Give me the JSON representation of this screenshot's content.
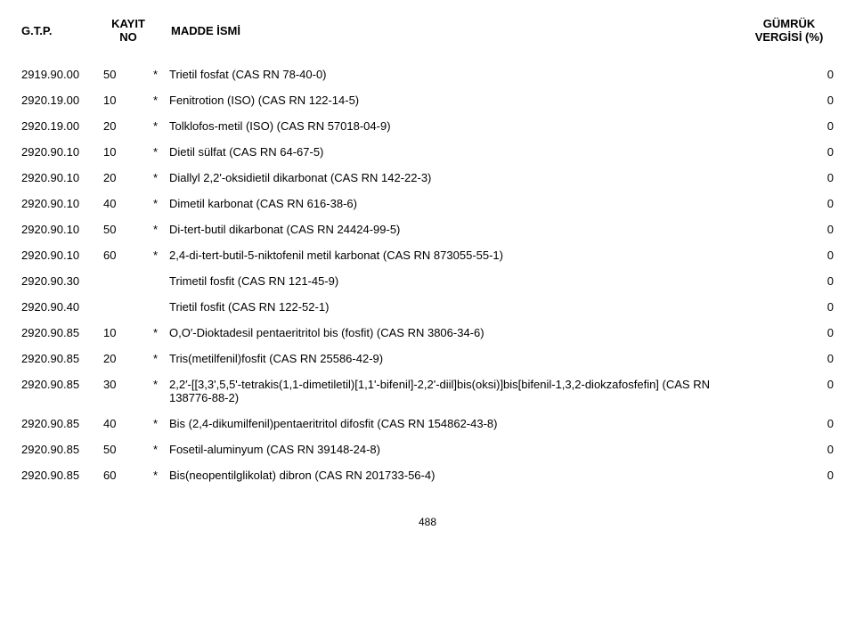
{
  "header": {
    "gtp": "G.T.P.",
    "kayit_line1": "KAYIT",
    "kayit_line2": "NO",
    "madde": "MADDE İSMİ",
    "vergi_line1": "GÜMRÜK",
    "vergi_line2": "VERGİSİ (%)"
  },
  "rows": [
    {
      "gtp": "2919.90.00",
      "kayit": "50",
      "star": "*",
      "madde": "Trietil fosfat (CAS RN 78-40-0)",
      "vergi": "0"
    },
    {
      "gtp": "2920.19.00",
      "kayit": "10",
      "star": "*",
      "madde": "Fenitrotion (ISO) (CAS RN 122-14-5)",
      "vergi": "0"
    },
    {
      "gtp": "2920.19.00",
      "kayit": "20",
      "star": "*",
      "madde": "Tolklofos-metil (ISO) (CAS RN 57018-04-9)",
      "vergi": "0"
    },
    {
      "gtp": "2920.90.10",
      "kayit": "10",
      "star": "*",
      "madde": "Dietil sülfat (CAS RN 64-67-5)",
      "vergi": "0"
    },
    {
      "gtp": "2920.90.10",
      "kayit": "20",
      "star": "*",
      "madde": "Diallyl 2,2'-oksidietil dikarbonat (CAS RN 142-22-3)",
      "vergi": "0"
    },
    {
      "gtp": "2920.90.10",
      "kayit": "40",
      "star": "*",
      "madde": "Dimetil karbonat (CAS RN 616-38-6)",
      "vergi": "0"
    },
    {
      "gtp": "2920.90.10",
      "kayit": "50",
      "star": "*",
      "madde": "Di-tert-butil dikarbonat (CAS RN 24424-99-5)",
      "vergi": "0"
    },
    {
      "gtp": "2920.90.10",
      "kayit": "60",
      "star": "*",
      "madde": "2,4-di-tert-butil-5-niktofenil metil karbonat (CAS RN 873055-55-1)",
      "vergi": "0"
    },
    {
      "gtp": "2920.90.30",
      "kayit": "",
      "star": "",
      "madde": "Trimetil fosfit (CAS RN 121-45-9)",
      "vergi": "0"
    },
    {
      "gtp": "2920.90.40",
      "kayit": "",
      "star": "",
      "madde": "Trietil fosfit (CAS RN 122-52-1)",
      "vergi": "0"
    },
    {
      "gtp": "2920.90.85",
      "kayit": "10",
      "star": "*",
      "madde": "O,O′-Dioktadesil pentaeritritol bis (fosfit) (CAS RN 3806-34-6)",
      "vergi": "0"
    },
    {
      "gtp": "2920.90.85",
      "kayit": "20",
      "star": "*",
      "madde": "Tris(metilfenil)fosfit (CAS RN 25586-42-9)",
      "vergi": "0"
    },
    {
      "gtp": "2920.90.85",
      "kayit": "30",
      "star": "*",
      "madde": "2,2′-[[3,3',5,5'-tetrakis(1,1-dimetiletil)[1,1'-bifenil]-2,2'-diil]bis(oksi)]bis[bifenil-1,3,2-diokzafosfefin] (CAS RN 138776-88-2)",
      "vergi": "0"
    },
    {
      "gtp": "2920.90.85",
      "kayit": "40",
      "star": "*",
      "madde": "Bis (2,4-dikumilfenil)pentaeritritol difosfit (CAS RN 154862-43-8)",
      "vergi": "0"
    },
    {
      "gtp": "2920.90.85",
      "kayit": "50",
      "star": "*",
      "madde": "Fosetil-aluminyum (CAS RN 39148-24-8)",
      "vergi": "0"
    },
    {
      "gtp": "2920.90.85",
      "kayit": "60",
      "star": "*",
      "madde": "Bis(neopentilglikolat) dibron (CAS RN 201733-56-4)",
      "vergi": "0"
    }
  ],
  "page_number": "488"
}
